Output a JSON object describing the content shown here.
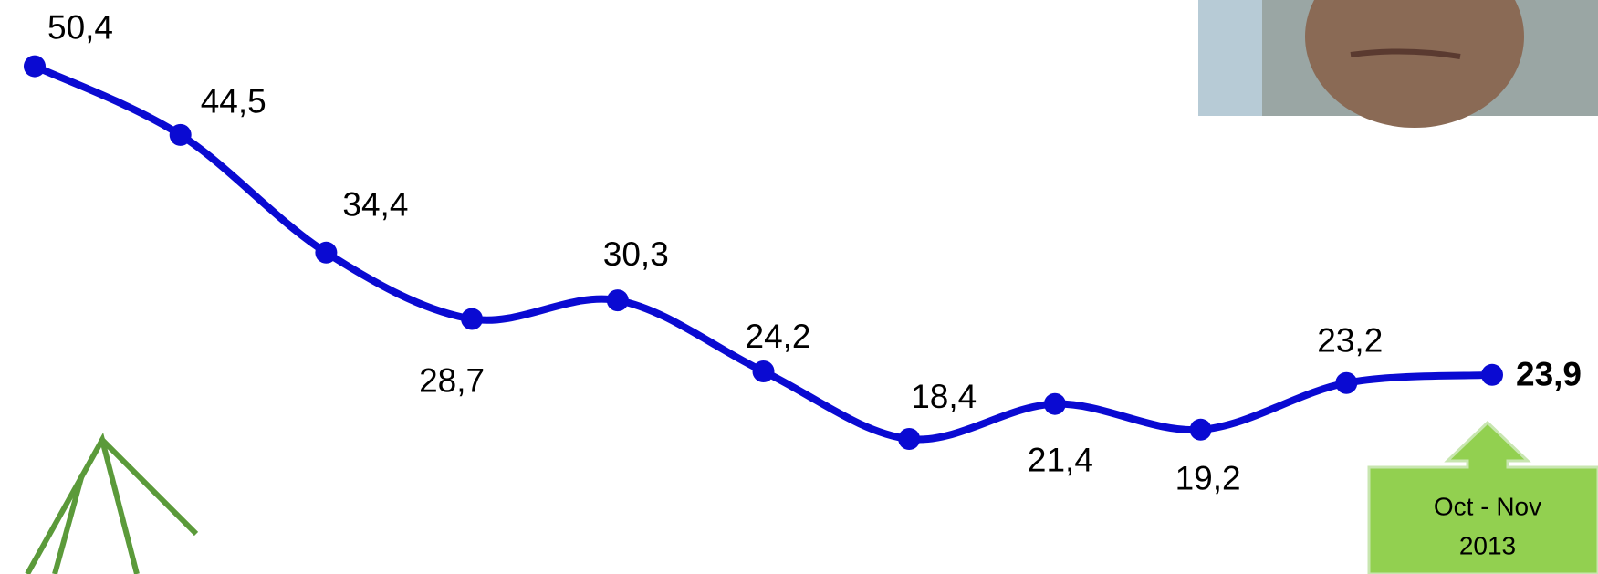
{
  "chart_data": {
    "type": "line",
    "series": [
      {
        "color": "#0a0ad2",
        "values": [
          50.4,
          44.5,
          34.4,
          28.7,
          30.3,
          24.2,
          18.4,
          21.4,
          19.2,
          23.2,
          23.9
        ],
        "value_labels": [
          "50,4",
          "44,5",
          "34,4",
          "28,7",
          "30,3",
          "24,2",
          "18,4",
          "21,4",
          "19,2",
          "23,2",
          "23,9"
        ]
      }
    ],
    "annotation": [
      "Oct - Nov",
      "2013"
    ]
  }
}
